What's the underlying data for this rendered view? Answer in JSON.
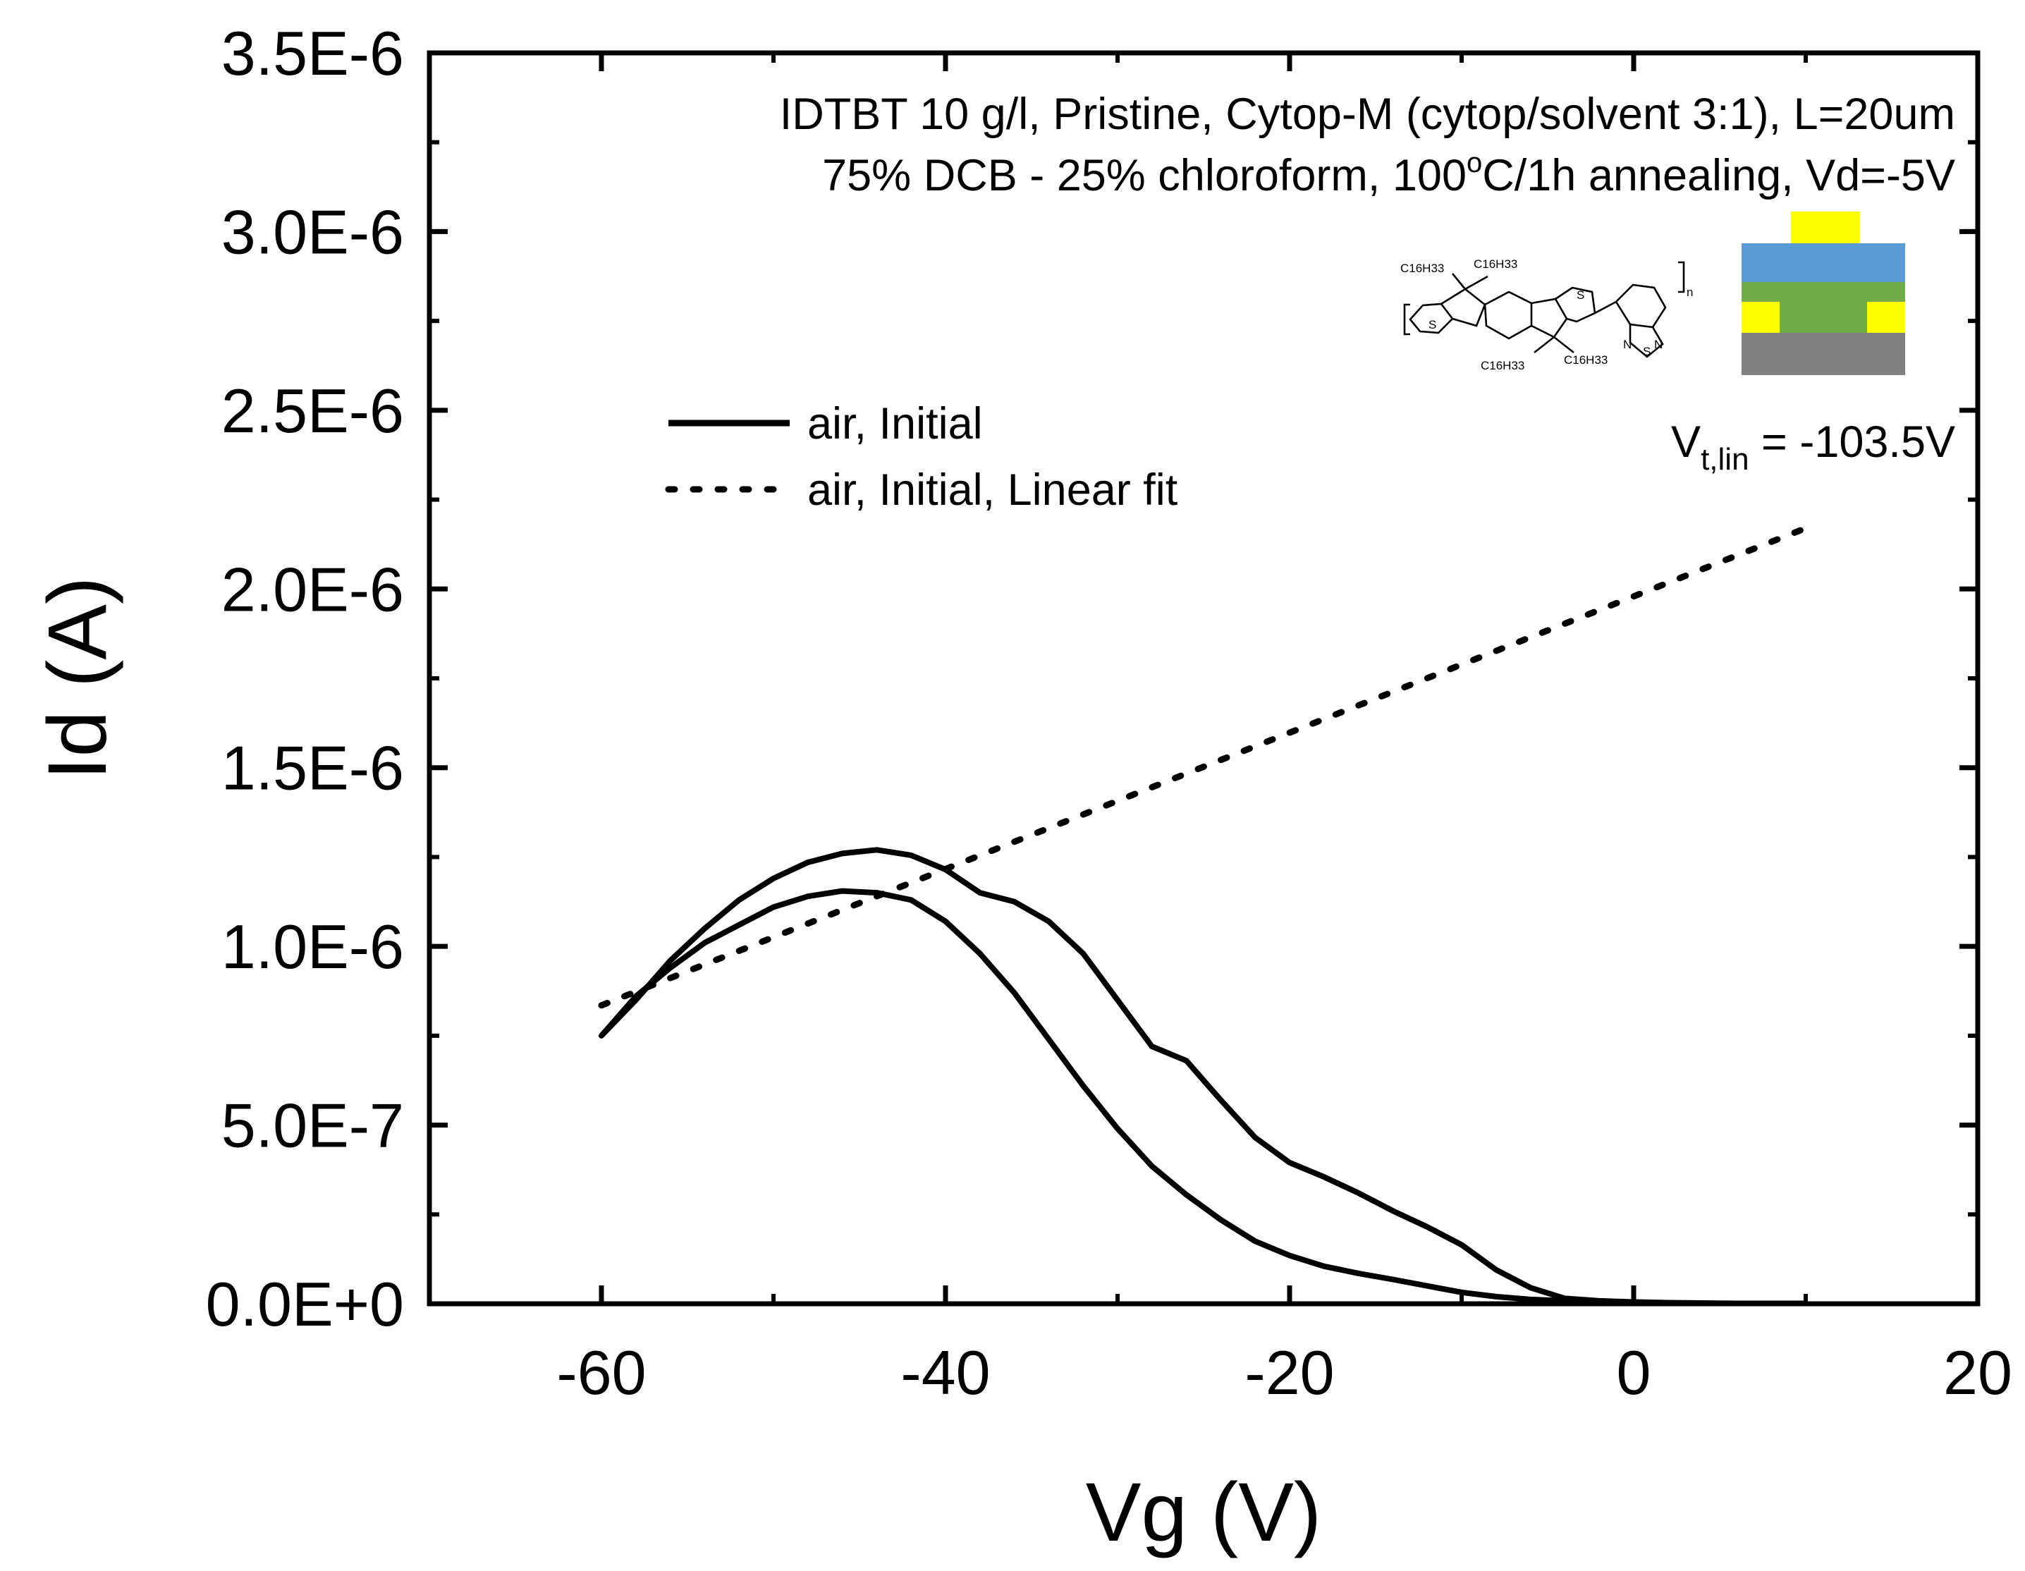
{
  "chart_data": {
    "type": "line",
    "xlabel": "Vg (V)",
    "ylabel": "Id (A)",
    "xlim": [
      -70,
      20
    ],
    "ylim": [
      0,
      3.5e-06
    ],
    "x_ticks": [
      -60,
      -40,
      -20,
      0,
      20
    ],
    "x_tick_labels": [
      "-60",
      "-40",
      "-20",
      "0",
      "20"
    ],
    "y_ticks": [
      0,
      5e-07,
      1e-06,
      1.5e-06,
      2e-06,
      2.5e-06,
      3e-06,
      3.5e-06
    ],
    "y_tick_labels": [
      "0.0E+0",
      "5.0E-7",
      "1.0E-6",
      "1.5E-6",
      "2.0E-6",
      "2.5E-6",
      "3.0E-6",
      "3.5E-6"
    ],
    "grid": false,
    "legend_position": "upper-left",
    "annotation": {
      "line1": "IDTBT 10 g/l, Pristine, Cytop-M (cytop/solvent 3:1), L=20um",
      "line2_pre": "75% DCB - 25% chloroform, 100",
      "line2_sup": "o",
      "line2_post": "C/1h annealing, Vd=-5V"
    },
    "vt_label": {
      "main": "V",
      "sub": "t,lin",
      "value": " = -103.5V"
    },
    "structure_labels": {
      "c16_1": "C16H33",
      "c16_2": "C16H33",
      "c16_3": "C16H33",
      "c16_4": "C16H33",
      "s1": "S",
      "s2": "S",
      "s3": "S",
      "n1": "N",
      "n2": "N",
      "n_sub": "n"
    },
    "device_colors": {
      "electrode": "#ffff00",
      "dielectric": "#5b9bd5",
      "semiconductor": "#70ad47",
      "substrate": "#808080"
    },
    "series": [
      {
        "name": "air, Initial",
        "style": "solid",
        "x": [
          -60,
          -58,
          -56,
          -54,
          -52,
          -50,
          -48,
          -46,
          -44,
          -42,
          -40,
          -38,
          -36,
          -34,
          -32,
          -30,
          -28,
          -26,
          -24,
          -22,
          -20,
          -18,
          -16,
          -14,
          -12,
          -10,
          -8,
          -6,
          -4,
          -2,
          0,
          2,
          4,
          6,
          8,
          10,
          8,
          6,
          4,
          2,
          0,
          -2,
          -4,
          -6,
          -8,
          -10,
          -12,
          -14,
          -16,
          -18,
          -20,
          -22,
          -24,
          -26,
          -28,
          -30,
          -32,
          -34,
          -36,
          -38,
          -40,
          -42,
          -44,
          -46,
          -48,
          -50,
          -52,
          -54,
          -56,
          -58,
          -60
        ],
        "y": [
          7.5e-07,
          8.5e-07,
          9.6e-07,
          1.05e-06,
          1.13e-06,
          1.19e-06,
          1.235e-06,
          1.26e-06,
          1.27e-06,
          1.255e-06,
          1.215e-06,
          1.15e-06,
          1.125e-06,
          1.07e-06,
          9.8e-07,
          8.5e-07,
          7.2e-07,
          6.8e-07,
          5.7e-07,
          4.65e-07,
          3.95e-07,
          3.55e-07,
          3.1e-07,
          2.6e-07,
          2.15e-07,
          1.65e-07,
          9.5e-08,
          4.5e-08,
          1.5e-08,
          8e-09,
          5e-09,
          3e-09,
          2e-09,
          1e-09,
          1e-09,
          1e-09,
          1e-09,
          1e-09,
          1e-09,
          2e-09,
          4e-09,
          6e-09,
          8e-09,
          1.2e-08,
          2e-08,
          3.2e-08,
          5e-08,
          6.8e-08,
          8.5e-08,
          1.05e-07,
          1.35e-07,
          1.75e-07,
          2.35e-07,
          3.05e-07,
          3.85e-07,
          4.9e-07,
          6.1e-07,
          7.4e-07,
          8.7e-07,
          9.8e-07,
          1.07e-06,
          1.13e-06,
          1.15e-06,
          1.155e-06,
          1.14e-06,
          1.11e-06,
          1.06e-06,
          1.01e-06,
          9.4e-07,
          8.6e-07,
          7.5e-07
        ]
      },
      {
        "name": "air, Initial, Linear fit",
        "style": "dotted",
        "x": [
          -60,
          10
        ],
        "y": [
          8.35e-07,
          2.17e-06
        ]
      }
    ]
  }
}
